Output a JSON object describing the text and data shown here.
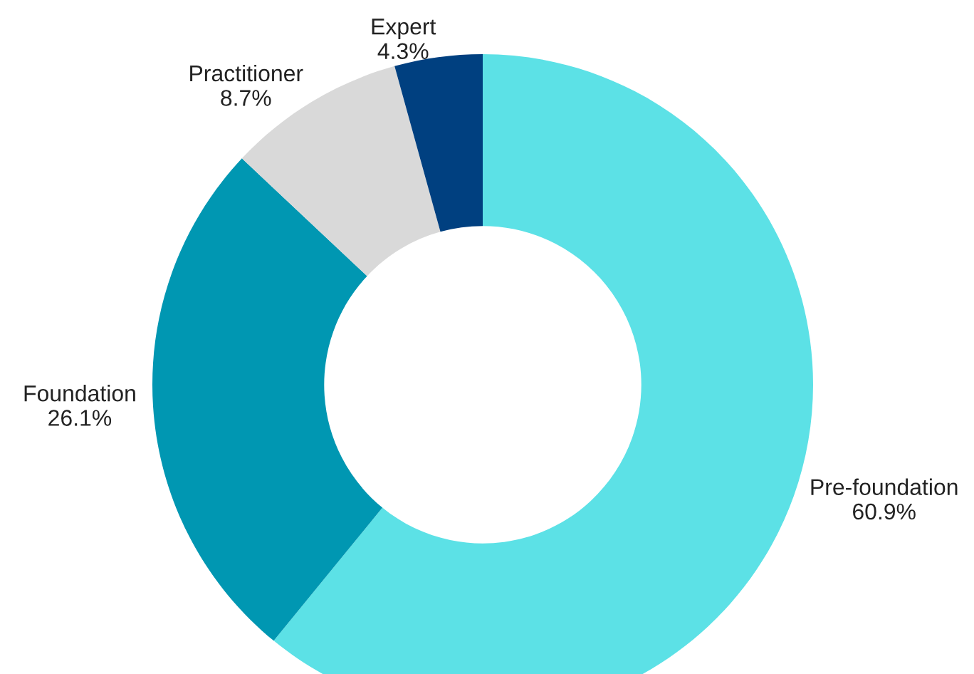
{
  "chart_data": {
    "type": "donut",
    "categories": [
      "Pre-foundation",
      "Foundation",
      "Practitioner",
      "Expert"
    ],
    "values": [
      60.9,
      26.1,
      8.7,
      4.3
    ],
    "colors": [
      "#5ce1e6",
      "#0097b2",
      "#d9d9d9",
      "#004080"
    ],
    "value_labels": [
      "60.9%",
      "26.1%",
      "8.7%",
      "4.3%"
    ],
    "legend": false
  }
}
